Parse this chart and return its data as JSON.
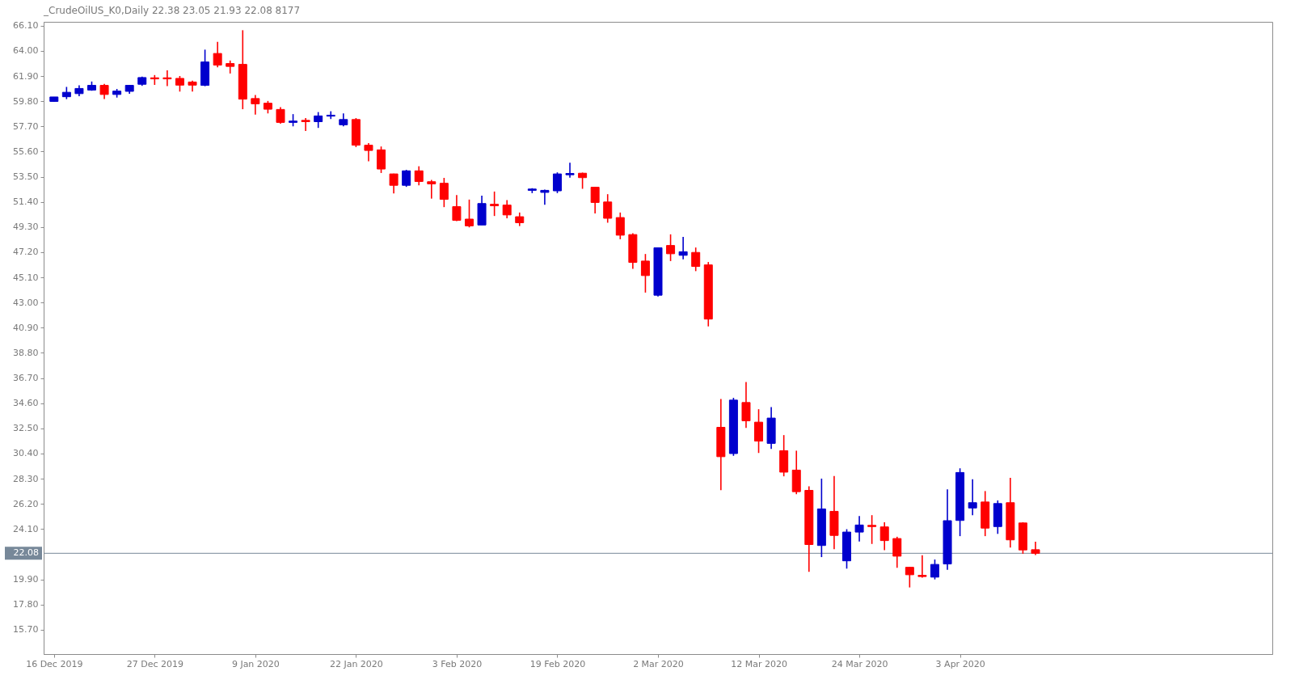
{
  "chart_data": {
    "type": "candlestick",
    "title": "_CrudeOilUS_K0,Daily  22.38 23.05 21.93 22.08  8177",
    "categories": [
      "16 Dec 2019",
      null,
      null,
      null,
      null,
      null,
      null,
      null,
      "27 Dec 2019",
      null,
      null,
      null,
      null,
      null,
      null,
      null,
      "9 Jan 2020",
      null,
      null,
      null,
      null,
      null,
      null,
      null,
      "22 Jan 2020",
      null,
      null,
      null,
      null,
      null,
      null,
      null,
      "3 Feb 2020",
      null,
      null,
      null,
      null,
      null,
      null,
      null,
      "19 Feb 2020",
      null,
      null,
      null,
      null,
      null,
      null,
      null,
      "2 Mar 2020",
      null,
      null,
      null,
      null,
      null,
      null,
      null,
      "12 Mar 2020",
      null,
      null,
      null,
      null,
      null,
      null,
      null,
      "24 Mar 2020",
      null,
      null,
      null,
      null,
      null,
      null,
      null,
      "3 Apr 2020",
      null,
      null,
      null,
      null,
      null,
      null
    ],
    "ohlc": [
      [
        59.78,
        60.15,
        59.75,
        60.15
      ],
      [
        60.17,
        60.99,
        59.97,
        60.54
      ],
      [
        60.43,
        61.12,
        60.21,
        60.86
      ],
      [
        60.73,
        61.44,
        60.67,
        61.12
      ],
      [
        61.12,
        61.25,
        59.97,
        60.36
      ],
      [
        60.36,
        60.82,
        60.1,
        60.64
      ],
      [
        60.62,
        61.15,
        60.41,
        61.12
      ],
      [
        61.21,
        61.85,
        61.08,
        61.77
      ],
      [
        61.75,
        61.98,
        61.16,
        61.66
      ],
      [
        61.75,
        62.37,
        61.05,
        61.66
      ],
      [
        61.7,
        61.9,
        60.6,
        61.14
      ],
      [
        61.4,
        61.51,
        60.6,
        61.14
      ],
      [
        61.12,
        64.1,
        61.05,
        63.07
      ],
      [
        63.78,
        64.75,
        62.63,
        62.81
      ],
      [
        62.94,
        63.19,
        62.11,
        62.7
      ],
      [
        62.87,
        65.72,
        59.13,
        59.97
      ],
      [
        60.02,
        60.32,
        58.68,
        59.58
      ],
      [
        59.63,
        59.82,
        58.78,
        59.13
      ],
      [
        59.11,
        59.3,
        57.92,
        58.03
      ],
      [
        58.03,
        58.72,
        57.7,
        58.14
      ],
      [
        58.2,
        58.39,
        57.31,
        58.09
      ],
      [
        58.09,
        58.89,
        57.57,
        58.57
      ],
      [
        58.55,
        58.96,
        58.31,
        58.63
      ],
      [
        57.83,
        58.78,
        57.7,
        58.27
      ],
      [
        58.27,
        58.39,
        55.97,
        56.13
      ],
      [
        56.13,
        56.3,
        54.79,
        55.69
      ],
      [
        55.74,
        56.02,
        53.81,
        54.14
      ],
      [
        53.73,
        53.75,
        52.11,
        52.78
      ],
      [
        52.78,
        54.07,
        52.65,
        53.99
      ],
      [
        53.99,
        54.37,
        52.78,
        53.1
      ],
      [
        53.08,
        53.23,
        51.67,
        52.9
      ],
      [
        52.95,
        53.4,
        50.96,
        51.61
      ],
      [
        51.0,
        51.97,
        49.79,
        49.86
      ],
      [
        49.96,
        51.59,
        49.27,
        49.4
      ],
      [
        49.47,
        51.91,
        49.47,
        51.26
      ],
      [
        51.2,
        52.26,
        50.22,
        51.07
      ],
      [
        51.13,
        51.54,
        50.03,
        50.31
      ],
      [
        50.16,
        50.51,
        49.38,
        49.66
      ],
      [
        52.36,
        52.54,
        52.13,
        52.47
      ],
      [
        52.19,
        52.43,
        51.15,
        52.36
      ],
      [
        52.32,
        53.86,
        52.13,
        53.73
      ],
      [
        53.66,
        54.66,
        53.42,
        53.77
      ],
      [
        53.79,
        53.84,
        52.49,
        53.42
      ],
      [
        52.62,
        52.64,
        50.44,
        51.35
      ],
      [
        51.39,
        52.04,
        49.66,
        50.03
      ],
      [
        50.09,
        50.51,
        48.28,
        48.62
      ],
      [
        48.67,
        48.78,
        45.81,
        46.35
      ],
      [
        46.46,
        47.05,
        43.83,
        45.25
      ],
      [
        43.61,
        47.57,
        43.5,
        47.57
      ],
      [
        47.76,
        48.69,
        46.46,
        47.07
      ],
      [
        46.94,
        48.47,
        46.61,
        47.24
      ],
      [
        47.18,
        47.59,
        45.62,
        46.01
      ],
      [
        46.14,
        46.38,
        41.01,
        41.62
      ],
      [
        32.59,
        34.96,
        27.35,
        30.14
      ],
      [
        30.4,
        35.05,
        30.21,
        34.86
      ],
      [
        34.66,
        36.37,
        32.54,
        33.13
      ],
      [
        33.02,
        34.1,
        30.45,
        31.44
      ],
      [
        31.25,
        34.27,
        30.79,
        33.36
      ],
      [
        30.64,
        31.94,
        28.5,
        28.85
      ],
      [
        29.02,
        30.64,
        27.01,
        27.22
      ],
      [
        27.33,
        27.66,
        20.54,
        22.81
      ],
      [
        22.73,
        28.31,
        21.76,
        25.78
      ],
      [
        25.58,
        28.52,
        22.42,
        23.57
      ],
      [
        21.45,
        24.09,
        20.8,
        23.85
      ],
      [
        23.85,
        25.19,
        23.07,
        24.44
      ],
      [
        24.41,
        25.26,
        22.86,
        24.31
      ],
      [
        24.28,
        24.67,
        22.34,
        23.14
      ],
      [
        23.31,
        23.46,
        20.87,
        21.84
      ],
      [
        20.91,
        20.93,
        19.23,
        20.29
      ],
      [
        20.24,
        21.91,
        20.05,
        20.14
      ],
      [
        20.09,
        21.56,
        19.9,
        21.15
      ],
      [
        21.19,
        27.42,
        20.7,
        24.8
      ],
      [
        24.82,
        29.17,
        23.51,
        28.82
      ],
      [
        25.86,
        28.26,
        25.26,
        26.3
      ],
      [
        26.36,
        27.27,
        23.51,
        24.18
      ],
      [
        24.31,
        26.49,
        23.7,
        26.23
      ],
      [
        26.3,
        28.37,
        22.55,
        23.2
      ],
      [
        24.61,
        24.67,
        22.04,
        22.36
      ],
      [
        22.38,
        23.05,
        21.93,
        22.08
      ]
    ],
    "colors": [
      "#0000cd",
      "#0000cd",
      "#0000cd",
      "#0000cd",
      "#ff0000",
      "#0000cd",
      "#0000cd",
      "#0000cd",
      "#ff0000",
      "#ff0000",
      "#ff0000",
      "#ff0000",
      "#0000cd",
      "#ff0000",
      "#ff0000",
      "#ff0000",
      "#ff0000",
      "#ff0000",
      "#ff0000",
      "#0000cd",
      "#ff0000",
      "#0000cd",
      "#0000cd",
      "#0000cd",
      "#ff0000",
      "#ff0000",
      "#ff0000",
      "#ff0000",
      "#0000cd",
      "#ff0000",
      "#ff0000",
      "#ff0000",
      "#ff0000",
      "#ff0000",
      "#0000cd",
      "#ff0000",
      "#ff0000",
      "#ff0000",
      "#0000cd",
      "#0000cd",
      "#0000cd",
      "#0000cd",
      "#ff0000",
      "#ff0000",
      "#ff0000",
      "#ff0000",
      "#ff0000",
      "#ff0000",
      "#0000cd",
      "#ff0000",
      "#0000cd",
      "#ff0000",
      "#ff0000",
      "#ff0000",
      "#0000cd",
      "#ff0000",
      "#ff0000",
      "#0000cd",
      "#ff0000",
      "#ff0000",
      "#ff0000",
      "#0000cd",
      "#ff0000",
      "#0000cd",
      "#0000cd",
      "#ff0000",
      "#ff0000",
      "#ff0000",
      "#ff0000",
      "#ff0000",
      "#0000cd",
      "#0000cd",
      "#0000cd",
      "#0000cd",
      "#ff0000",
      "#0000cd",
      "#ff0000",
      "#ff0000",
      "#ff0000"
    ],
    "ylim": [
      13.67,
      66.42
    ],
    "yticks": [
      {
        "value": 66.1,
        "label": "66.10"
      },
      {
        "value": 64,
        "label": "64.00"
      },
      {
        "value": 61.9,
        "label": "61.90"
      },
      {
        "value": 59.8,
        "label": "59.80"
      },
      {
        "value": 57.7,
        "label": "57.70"
      },
      {
        "value": 55.6,
        "label": "55.60"
      },
      {
        "value": 53.5,
        "label": "53.50"
      },
      {
        "value": 51.4,
        "label": "51.40"
      },
      {
        "value": 49.3,
        "label": "49.30"
      },
      {
        "value": 47.2,
        "label": "47.20"
      },
      {
        "value": 45.1,
        "label": "45.10"
      },
      {
        "value": 43,
        "label": "43.00"
      },
      {
        "value": 40.9,
        "label": "40.90"
      },
      {
        "value": 38.8,
        "label": "38.80"
      },
      {
        "value": 36.7,
        "label": "36.70"
      },
      {
        "value": 34.6,
        "label": "34.60"
      },
      {
        "value": 32.5,
        "label": "32.50"
      },
      {
        "value": 30.4,
        "label": "30.40"
      },
      {
        "value": 28.3,
        "label": "28.30"
      },
      {
        "value": 26.2,
        "label": "26.20"
      },
      {
        "value": 24.1,
        "label": "24.10"
      },
      {
        "value": 19.9,
        "label": "19.90"
      },
      {
        "value": 17.8,
        "label": "17.80"
      },
      {
        "value": 15.7,
        "label": "15.70"
      }
    ],
    "ref_lines": [
      {
        "axis": "y",
        "value": 22.08,
        "label": "22.08",
        "color": "#778899"
      }
    ]
  }
}
